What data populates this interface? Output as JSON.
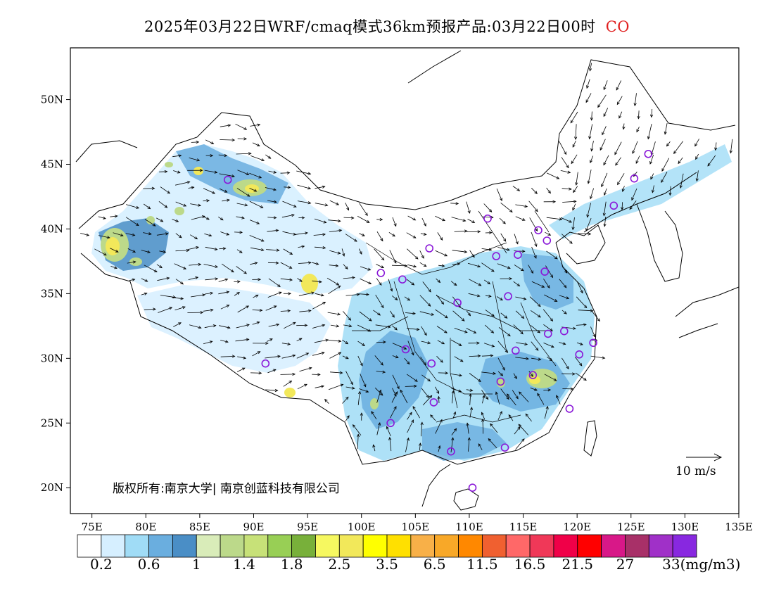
{
  "title": {
    "text": "2025年03月22日WRF/cmaq模式36km预报产品:03月22日00时",
    "species": "CO"
  },
  "axes": {
    "lon_ticks": [
      "75E",
      "80E",
      "85E",
      "90E",
      "95E",
      "100E",
      "105E",
      "110E",
      "115E",
      "120E",
      "125E",
      "130E",
      "135E"
    ],
    "lat_ticks": [
      "20N",
      "25N",
      "30N",
      "35N",
      "40N",
      "45N",
      "50N"
    ],
    "lon_range": [
      73,
      135
    ],
    "lat_range": [
      18,
      54
    ]
  },
  "legend": {
    "colors": [
      "#ffffff",
      "#d6efff",
      "#a0dcf6",
      "#6aaedf",
      "#4a8ec6",
      "#d9ecb9",
      "#bcd98a",
      "#c7e178",
      "#98cf55",
      "#78b03a",
      "#f6f860",
      "#f2e85a",
      "#ffff00",
      "#ffe000",
      "#f8b048",
      "#f8a828",
      "#ff8800",
      "#f06030",
      "#ff6868",
      "#f03858",
      "#f00048",
      "#ff0000",
      "#d81888",
      "#a83068",
      "#a030c8",
      "#8828e0"
    ],
    "labels": [
      "0.2",
      "0.6",
      "1",
      "1.4",
      "1.8",
      "2.5",
      "3.5",
      "6.5",
      "11.5",
      "16.5",
      "21.5",
      "27",
      "33(mg/m3)"
    ]
  },
  "wind_scale": {
    "label": "10 m/s"
  },
  "copyright": {
    "text": "版权所有:南京大学| 南京创蓝科技有限公司"
  },
  "stations_color": "#8a18d8",
  "concentration_colors": {
    "light": "#d6efff",
    "mid": "#a0dcf6",
    "dark": "#6aaedf",
    "darker": "#4a8ec6",
    "hot": "#f2e85a",
    "green": "#bcd98a"
  }
}
